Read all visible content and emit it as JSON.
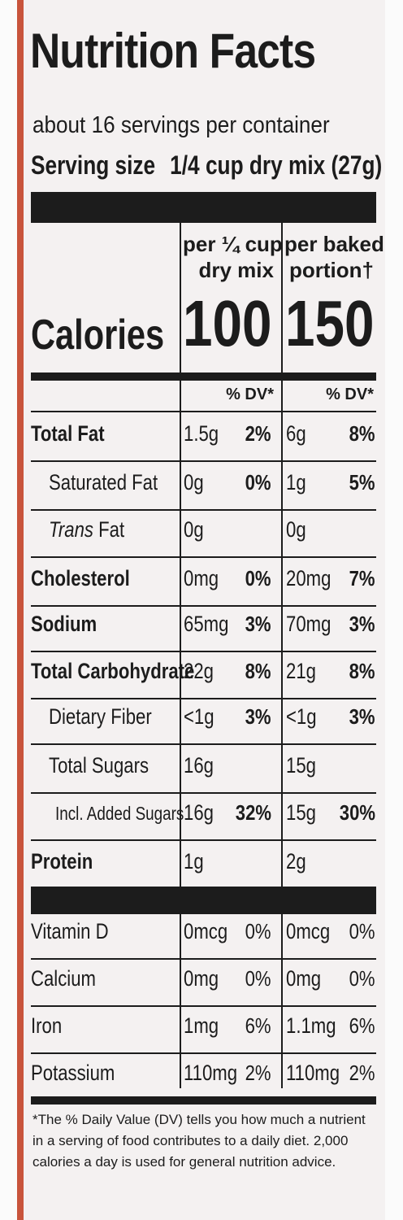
{
  "title": "Nutrition Facts",
  "servings": "about 16 servings per container",
  "serving_size_label": "Serving size",
  "serving_size_value": "1/4 cup dry mix (27g)",
  "col1_header_line1": "per ¼ cup",
  "col1_header_line2": "dry mix",
  "col2_header_line1": "per baked",
  "col2_header_line2": "portion†",
  "calories_label": "Calories",
  "calories_col1": "100",
  "calories_col2": "150",
  "dv_header": "% DV*",
  "nutrients": [
    {
      "label": "Total Fat",
      "a1": "1.5g",
      "d1": "2%",
      "a2": "6g",
      "d2": "8%"
    },
    {
      "label": "Saturated Fat",
      "a1": "0g",
      "d1": "0%",
      "a2": "1g",
      "d2": "5%"
    },
    {
      "label_italic": "Trans",
      "label_rest": " Fat",
      "a1": "0g",
      "d1": "",
      "a2": "0g",
      "d2": ""
    },
    {
      "label": "Cholesterol",
      "a1": "0mg",
      "d1": "0%",
      "a2": "20mg",
      "d2": "7%"
    },
    {
      "label": "Sodium",
      "a1": "65mg",
      "d1": "3%",
      "a2": "70mg",
      "d2": "3%"
    },
    {
      "label": "Total Carbohydrate",
      "a1": "22g",
      "d1": "8%",
      "a2": "21g",
      "d2": "8%"
    },
    {
      "label": "Dietary Fiber",
      "a1": "<1g",
      "d1": "3%",
      "a2": "<1g",
      "d2": "3%"
    },
    {
      "label": "Total Sugars",
      "a1": "16g",
      "d1": "",
      "a2": "15g",
      "d2": ""
    },
    {
      "label": "Incl. Added Sugars",
      "a1": "16g",
      "d1": "32%",
      "a2": "15g",
      "d2": "30%"
    },
    {
      "label": "Protein",
      "a1": "1g",
      "d1": "",
      "a2": "2g",
      "d2": ""
    }
  ],
  "vitamins": [
    {
      "label": "Vitamin D",
      "a1": "0mcg",
      "d1": "0%",
      "a2": "0mcg",
      "d2": "0%"
    },
    {
      "label": "Calcium",
      "a1": "0mg",
      "d1": "0%",
      "a2": "0mg",
      "d2": "0%"
    },
    {
      "label": "Iron",
      "a1": "1mg",
      "d1": "6%",
      "a2": "1.1mg",
      "d2": "6%"
    },
    {
      "label": "Potassium",
      "a1": "110mg",
      "d1": "2%",
      "a2": "110mg",
      "d2": "2%"
    }
  ],
  "footnote": "*The % Daily Value (DV) tells you how much a nutrient in a serving of food contributes to a daily diet. 2,000 calories a day is used for general nutrition advice.",
  "colors": {
    "border_accent": "#c8543c",
    "ink": "#1c1c1c",
    "panel": "#f4f1f1"
  }
}
